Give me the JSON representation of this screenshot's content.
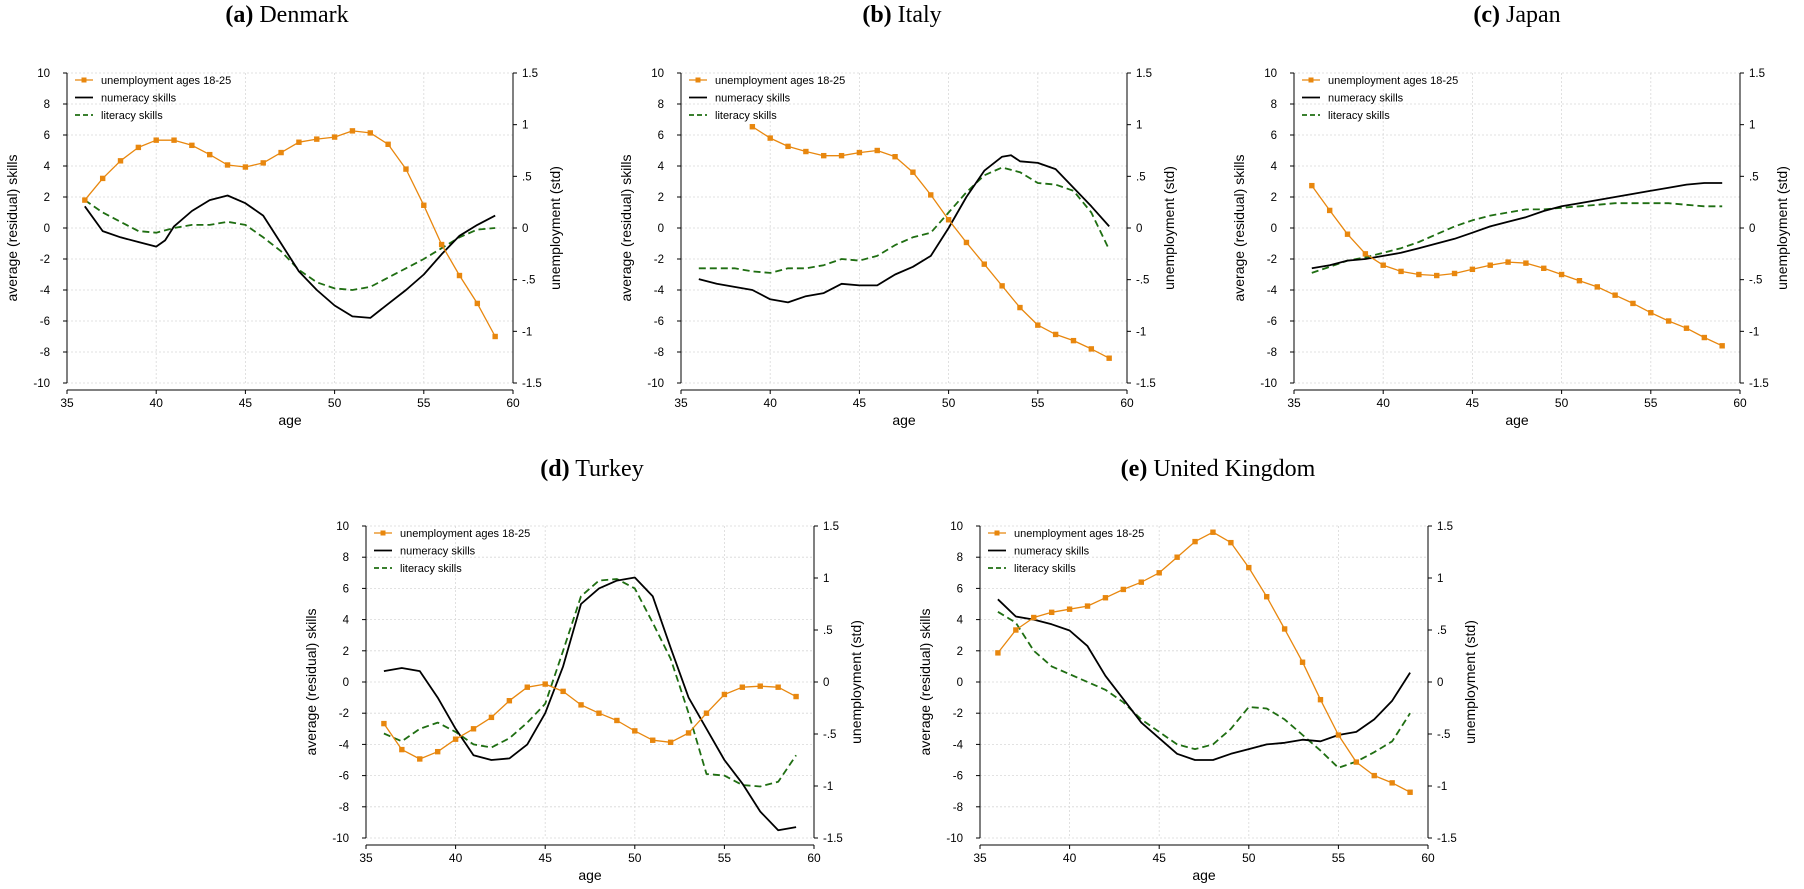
{
  "colors": {
    "unemployment": "#e8870e",
    "numeracy": "#000000",
    "literacy": "#1f6e12",
    "grid": "#d8d8d8"
  },
  "chart_data": [
    {
      "panel_label": "(a)",
      "panel_name": "Denmark",
      "type": "line",
      "xlabel": "age",
      "ylabel": "average (residual) skills",
      "y2label": "unemployment (std)",
      "xlim": [
        35,
        60
      ],
      "xticks": [
        35,
        40,
        45,
        50,
        55,
        60
      ],
      "ylim": [
        -10,
        10
      ],
      "yticks": [
        -10,
        -8,
        -6,
        -4,
        -2,
        0,
        2,
        4,
        6,
        8,
        10
      ],
      "y2lim": [
        -1.5,
        1.5
      ],
      "y2ticks": [
        -1.5,
        -1,
        -0.5,
        0,
        0.5,
        1,
        1.5
      ],
      "y2ticklabels": [
        "-1.5",
        "-1",
        "-.5",
        "0",
        ".5",
        "1",
        "1.5"
      ],
      "grid": true,
      "legend": "top-left",
      "series": [
        {
          "name": "unemployment ages 18-25",
          "axis": "right",
          "style": "marker",
          "x": [
            36,
            37,
            38,
            39,
            40,
            41,
            42,
            43,
            44,
            45,
            46,
            47,
            48,
            49,
            50,
            51,
            52,
            53,
            54,
            55,
            56,
            57,
            58,
            59
          ],
          "y": [
            0.27,
            0.48,
            0.65,
            0.78,
            0.85,
            0.85,
            0.8,
            0.71,
            0.61,
            0.59,
            0.63,
            0.73,
            0.83,
            0.86,
            0.88,
            0.94,
            0.92,
            0.81,
            0.57,
            0.22,
            -0.16,
            -0.46,
            -0.73,
            -1.05
          ]
        },
        {
          "name": "numeracy skills",
          "axis": "left",
          "style": "solid",
          "x": [
            36,
            37,
            38,
            39,
            40,
            40.5,
            41,
            42,
            43,
            44,
            45,
            46,
            47,
            48,
            49,
            50,
            51,
            52,
            53,
            54,
            55,
            56,
            57,
            58,
            59
          ],
          "y": [
            1.4,
            -0.2,
            -0.6,
            -0.9,
            -1.2,
            -0.8,
            0.1,
            1.1,
            1.8,
            2.1,
            1.6,
            0.8,
            -1.0,
            -2.8,
            -4.0,
            -5.0,
            -5.7,
            -5.8,
            -4.9,
            -4.0,
            -3.0,
            -1.7,
            -0.5,
            0.2,
            0.8
          ]
        },
        {
          "name": "literacy skills",
          "axis": "left",
          "style": "dashed",
          "x": [
            36,
            37,
            38,
            39,
            40,
            41,
            42,
            43,
            44,
            45,
            46,
            47,
            48,
            49,
            50,
            51,
            52,
            53,
            54,
            55,
            56,
            57,
            58,
            59
          ],
          "y": [
            1.8,
            1.0,
            0.4,
            -0.2,
            -0.3,
            0.0,
            0.2,
            0.2,
            0.4,
            0.2,
            -0.6,
            -1.5,
            -2.7,
            -3.5,
            -3.9,
            -4.0,
            -3.8,
            -3.2,
            -2.6,
            -2.0,
            -1.3,
            -0.6,
            -0.1,
            0.0
          ]
        }
      ]
    },
    {
      "panel_label": "(b)",
      "panel_name": "Italy",
      "type": "line",
      "xlabel": "age",
      "ylabel": "average (residual) skills",
      "y2label": "unemployment (std)",
      "xlim": [
        35,
        60
      ],
      "xticks": [
        35,
        40,
        45,
        50,
        55,
        60
      ],
      "ylim": [
        -10,
        10
      ],
      "yticks": [
        -10,
        -8,
        -6,
        -4,
        -2,
        0,
        2,
        4,
        6,
        8,
        10
      ],
      "y2lim": [
        -1.5,
        1.5
      ],
      "y2ticks": [
        -1.5,
        -1,
        -0.5,
        0,
        0.5,
        1,
        1.5
      ],
      "y2ticklabels": [
        "-1.5",
        "-1",
        "-.5",
        "0",
        ".5",
        "1",
        "1.5"
      ],
      "grid": true,
      "legend": "top-left",
      "series": [
        {
          "name": "unemployment ages 18-25",
          "axis": "right",
          "style": "marker",
          "x": [
            39,
            40,
            41,
            42,
            43,
            44,
            45,
            46,
            47,
            48,
            49,
            50,
            51,
            52,
            53,
            54,
            55,
            56,
            57,
            58,
            59
          ],
          "y": [
            0.98,
            0.87,
            0.79,
            0.74,
            0.7,
            0.7,
            0.73,
            0.75,
            0.69,
            0.54,
            0.32,
            0.08,
            -0.14,
            -0.35,
            -0.56,
            -0.77,
            -0.94,
            -1.03,
            -1.09,
            -1.17,
            -1.26
          ]
        },
        {
          "name": "numeracy skills",
          "axis": "left",
          "style": "solid",
          "x": [
            36,
            37,
            38,
            39,
            40,
            41,
            42,
            43,
            44,
            45,
            46,
            47,
            48,
            49,
            50,
            51,
            52,
            53,
            53.5,
            54,
            55,
            56,
            57,
            58,
            59
          ],
          "y": [
            -3.3,
            -3.6,
            -3.8,
            -4.0,
            -4.6,
            -4.8,
            -4.4,
            -4.2,
            -3.6,
            -3.7,
            -3.7,
            -3.0,
            -2.5,
            -1.8,
            0.0,
            2.0,
            3.7,
            4.6,
            4.7,
            4.3,
            4.2,
            3.8,
            2.6,
            1.4,
            0.1
          ]
        },
        {
          "name": "literacy skills",
          "axis": "left",
          "style": "dashed",
          "x": [
            36,
            37,
            38,
            39,
            40,
            41,
            42,
            43,
            44,
            45,
            46,
            47,
            48,
            49,
            50,
            51,
            52,
            53,
            54,
            55,
            56,
            57,
            58,
            59
          ],
          "y": [
            -2.6,
            -2.6,
            -2.6,
            -2.8,
            -2.9,
            -2.6,
            -2.6,
            -2.4,
            -2.0,
            -2.1,
            -1.8,
            -1.1,
            -0.6,
            -0.3,
            1.0,
            2.3,
            3.4,
            3.9,
            3.6,
            2.9,
            2.8,
            2.4,
            1.0,
            -1.4
          ]
        }
      ]
    },
    {
      "panel_label": "(c)",
      "panel_name": "Japan",
      "type": "line",
      "xlabel": "age",
      "ylabel": "average (residual) skills",
      "y2label": "unemployment (std)",
      "xlim": [
        35,
        60
      ],
      "xticks": [
        35,
        40,
        45,
        50,
        55,
        60
      ],
      "ylim": [
        -10,
        10
      ],
      "yticks": [
        -10,
        -8,
        -6,
        -4,
        -2,
        0,
        2,
        4,
        6,
        8,
        10
      ],
      "y2lim": [
        -1.5,
        1.5
      ],
      "y2ticks": [
        -1.5,
        -1,
        -0.5,
        0,
        0.5,
        1,
        1.5
      ],
      "y2ticklabels": [
        "-1.5",
        "-1",
        "-.5",
        "0",
        ".5",
        "1",
        "1.5"
      ],
      "grid": true,
      "legend": "top-left",
      "series": [
        {
          "name": "unemployment ages 18-25",
          "axis": "right",
          "style": "marker",
          "x": [
            36,
            37,
            38,
            39,
            40,
            41,
            42,
            43,
            44,
            45,
            46,
            47,
            48,
            49,
            50,
            51,
            52,
            53,
            54,
            55,
            56,
            57,
            58,
            59
          ],
          "y": [
            0.41,
            0.17,
            -0.06,
            -0.25,
            -0.36,
            -0.42,
            -0.45,
            -0.46,
            -0.44,
            -0.4,
            -0.36,
            -0.33,
            -0.34,
            -0.39,
            -0.45,
            -0.51,
            -0.57,
            -0.65,
            -0.73,
            -0.82,
            -0.9,
            -0.97,
            -1.06,
            -1.14
          ]
        },
        {
          "name": "numeracy skills",
          "axis": "left",
          "style": "solid",
          "x": [
            36,
            37,
            38,
            39,
            40,
            41,
            42,
            43,
            44,
            45,
            46,
            47,
            48,
            49,
            50,
            51,
            52,
            53,
            54,
            55,
            56,
            57,
            58,
            59
          ],
          "y": [
            -2.6,
            -2.4,
            -2.1,
            -2.0,
            -1.8,
            -1.6,
            -1.3,
            -1.0,
            -0.7,
            -0.3,
            0.1,
            0.4,
            0.7,
            1.1,
            1.4,
            1.6,
            1.8,
            2.0,
            2.2,
            2.4,
            2.6,
            2.8,
            2.9,
            2.9
          ]
        },
        {
          "name": "literacy skills",
          "axis": "left",
          "style": "dashed",
          "x": [
            36,
            37,
            38,
            39,
            40,
            41,
            42,
            43,
            44,
            45,
            46,
            47,
            48,
            49,
            50,
            51,
            52,
            53,
            54,
            55,
            56,
            57,
            58,
            59
          ],
          "y": [
            -2.9,
            -2.5,
            -2.1,
            -1.9,
            -1.6,
            -1.3,
            -0.9,
            -0.4,
            0.1,
            0.5,
            0.8,
            1.0,
            1.2,
            1.2,
            1.3,
            1.4,
            1.5,
            1.6,
            1.6,
            1.6,
            1.6,
            1.5,
            1.4,
            1.4
          ]
        }
      ]
    },
    {
      "panel_label": "(d)",
      "panel_name": "Turkey",
      "type": "line",
      "xlabel": "age",
      "ylabel": "average (residual) skills",
      "y2label": "unemployment (std)",
      "xlim": [
        35,
        60
      ],
      "xticks": [
        35,
        40,
        45,
        50,
        55,
        60
      ],
      "ylim": [
        -10,
        10
      ],
      "yticks": [
        -10,
        -8,
        -6,
        -4,
        -2,
        0,
        2,
        4,
        6,
        8,
        10
      ],
      "y2lim": [
        -1.5,
        1.5
      ],
      "y2ticks": [
        -1.5,
        -1,
        -0.5,
        0,
        0.5,
        1,
        1.5
      ],
      "y2ticklabels": [
        "-1.5",
        "-1",
        "-.5",
        "0",
        ".5",
        "1",
        "1.5"
      ],
      "grid": true,
      "legend": "top-left",
      "series": [
        {
          "name": "unemployment ages 18-25",
          "axis": "right",
          "style": "marker",
          "x": [
            36,
            37,
            38,
            39,
            40,
            41,
            42,
            43,
            44,
            45,
            46,
            47,
            48,
            49,
            50,
            51,
            52,
            53,
            54,
            55,
            56,
            57,
            58,
            59
          ],
          "y": [
            -0.4,
            -0.65,
            -0.74,
            -0.67,
            -0.55,
            -0.45,
            -0.34,
            -0.18,
            -0.05,
            -0.02,
            -0.09,
            -0.22,
            -0.3,
            -0.37,
            -0.47,
            -0.56,
            -0.58,
            -0.49,
            -0.3,
            -0.12,
            -0.05,
            -0.04,
            -0.05,
            -0.14
          ]
        },
        {
          "name": "numeracy skills",
          "axis": "left",
          "style": "solid",
          "x": [
            36,
            37,
            38,
            39,
            40,
            41,
            42,
            43,
            44,
            45,
            46,
            47,
            48,
            49,
            50,
            51,
            52,
            53,
            54,
            55,
            56,
            57,
            58,
            59
          ],
          "y": [
            0.7,
            0.9,
            0.7,
            -1.0,
            -3.0,
            -4.7,
            -5.0,
            -4.9,
            -4.0,
            -2.0,
            1.0,
            5.0,
            6.0,
            6.5,
            6.7,
            5.5,
            2.2,
            -1.0,
            -3.0,
            -5.0,
            -6.5,
            -8.3,
            -9.5,
            -9.3
          ]
        },
        {
          "name": "literacy skills",
          "axis": "left",
          "style": "dashed",
          "x": [
            36,
            37,
            38,
            39,
            40,
            41,
            42,
            43,
            44,
            45,
            46,
            47,
            48,
            49,
            50,
            51,
            52,
            53,
            54,
            55,
            56,
            57,
            58,
            59
          ],
          "y": [
            -3.3,
            -3.8,
            -3.0,
            -2.6,
            -3.2,
            -4.0,
            -4.2,
            -3.6,
            -2.6,
            -1.4,
            2.0,
            5.5,
            6.5,
            6.6,
            6.0,
            3.8,
            1.5,
            -2.0,
            -5.9,
            -6.0,
            -6.6,
            -6.7,
            -6.4,
            -4.7
          ]
        }
      ]
    },
    {
      "panel_label": "(e)",
      "panel_name": "United Kingdom",
      "type": "line",
      "xlabel": "age",
      "ylabel": "average (residual) skills",
      "y2label": "unemployment (std)",
      "xlim": [
        35,
        60
      ],
      "xticks": [
        35,
        40,
        45,
        50,
        55,
        60
      ],
      "ylim": [
        -10,
        10
      ],
      "yticks": [
        -10,
        -8,
        -6,
        -4,
        -2,
        0,
        2,
        4,
        6,
        8,
        10
      ],
      "y2lim": [
        -1.5,
        1.5
      ],
      "y2ticks": [
        -1.5,
        -1,
        -0.5,
        0,
        0.5,
        1,
        1.5
      ],
      "y2ticklabels": [
        "-1.5",
        "-1",
        "-.5",
        "0",
        ".5",
        "1",
        "1.5"
      ],
      "grid": true,
      "legend": "top-left",
      "series": [
        {
          "name": "unemployment ages 18-25",
          "axis": "right",
          "style": "marker",
          "x": [
            36,
            37,
            38,
            39,
            40,
            41,
            42,
            43,
            44,
            45,
            46,
            47,
            48,
            49,
            50,
            51,
            52,
            53,
            54,
            55,
            56,
            57,
            58,
            59
          ],
          "y": [
            0.28,
            0.5,
            0.62,
            0.67,
            0.7,
            0.73,
            0.81,
            0.89,
            0.96,
            1.05,
            1.2,
            1.35,
            1.44,
            1.34,
            1.1,
            0.82,
            0.51,
            0.19,
            -0.17,
            -0.51,
            -0.77,
            -0.9,
            -0.97,
            -1.06
          ]
        },
        {
          "name": "numeracy skills",
          "axis": "left",
          "style": "solid",
          "x": [
            36,
            37,
            38,
            39,
            40,
            41,
            42,
            43,
            44,
            45,
            46,
            47,
            48,
            49,
            50,
            51,
            52,
            53,
            54,
            55,
            56,
            57,
            58,
            59
          ],
          "y": [
            5.3,
            4.2,
            4.0,
            3.7,
            3.3,
            2.3,
            0.4,
            -1.1,
            -2.6,
            -3.6,
            -4.6,
            -5.0,
            -5.0,
            -4.6,
            -4.3,
            -4.0,
            -3.9,
            -3.7,
            -3.8,
            -3.4,
            -3.2,
            -2.4,
            -1.2,
            0.6
          ]
        },
        {
          "name": "literacy skills",
          "axis": "left",
          "style": "dashed",
          "x": [
            36,
            37,
            38,
            39,
            40,
            41,
            42,
            43,
            44,
            45,
            46,
            47,
            48,
            49,
            50,
            51,
            52,
            53,
            54,
            55,
            56,
            57,
            58,
            59
          ],
          "y": [
            4.5,
            3.8,
            2.0,
            1.0,
            0.5,
            0.0,
            -0.5,
            -1.3,
            -2.4,
            -3.2,
            -4.0,
            -4.3,
            -4.0,
            -3.0,
            -1.6,
            -1.7,
            -2.4,
            -3.4,
            -4.4,
            -5.5,
            -5.1,
            -4.5,
            -3.8,
            -2.0
          ]
        }
      ]
    }
  ]
}
